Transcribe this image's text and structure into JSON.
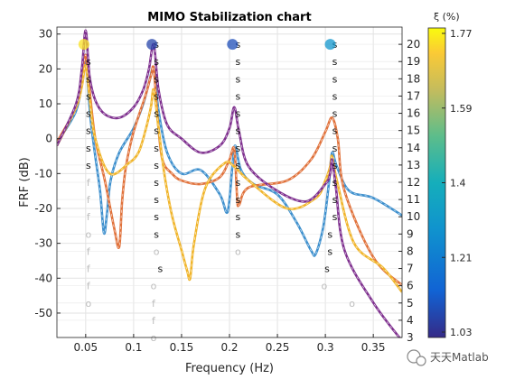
{
  "chart_data": {
    "type": "line",
    "title": "MIMO Stabilization chart",
    "xlabel": "Frequency (Hz)",
    "ylabel": "FRF (dB)",
    "xlim": [
      0.02,
      0.38
    ],
    "ylim": [
      -57,
      32
    ],
    "y2lim": [
      3,
      21
    ],
    "xticks": [
      0.05,
      0.1,
      0.15,
      0.2,
      0.25,
      0.3,
      0.35
    ],
    "yticks": [
      -50,
      -40,
      -30,
      -20,
      -10,
      0,
      10,
      20,
      30
    ],
    "y2ticks": [
      3,
      4,
      5,
      6,
      7,
      8,
      9,
      10,
      11,
      12,
      13,
      14,
      15,
      16,
      17,
      18,
      19,
      20
    ],
    "grid": true,
    "colorbar": {
      "label": "ξ (%)",
      "ticks": [
        "1.77",
        "1.59",
        "1.4",
        "1.21",
        "1.03"
      ],
      "range": [
        1.03,
        1.77
      ]
    },
    "stable_poles": [
      {
        "freq": 0.05,
        "damping": 1.74
      },
      {
        "freq": 0.121,
        "damping": 1.08
      },
      {
        "freq": 0.205,
        "damping": 1.1
      },
      {
        "freq": 0.307,
        "damping": 1.3
      }
    ],
    "series": [
      {
        "color": "#3d8fcd",
        "x": [
          0.02,
          0.03,
          0.04,
          0.045,
          0.048,
          0.05,
          0.052,
          0.055,
          0.06,
          0.065,
          0.069,
          0.072,
          0.076,
          0.085,
          0.1,
          0.11,
          0.116,
          0.121,
          0.126,
          0.135,
          0.15,
          0.17,
          0.19,
          0.198,
          0.203,
          0.206,
          0.212,
          0.225,
          0.25,
          0.27,
          0.285,
          0.29,
          0.298,
          0.304,
          0.307,
          0.312,
          0.325,
          0.35,
          0.38
        ],
        "y": [
          -1,
          3,
          8,
          14,
          20,
          24,
          17,
          6,
          -5,
          -15,
          -27,
          -22,
          -12,
          -4,
          3,
          10,
          16,
          20,
          8,
          -4,
          -10,
          -9,
          -16,
          -21,
          -8,
          -2,
          -9,
          -13,
          -16,
          -24,
          -32,
          -33,
          -25,
          -12,
          -4,
          -8,
          -15,
          -17,
          -22
        ]
      },
      {
        "color": "#e0713a",
        "x": [
          0.02,
          0.04,
          0.046,
          0.05,
          0.054,
          0.06,
          0.07,
          0.08,
          0.085,
          0.088,
          0.092,
          0.1,
          0.112,
          0.118,
          0.121,
          0.125,
          0.13,
          0.14,
          0.15,
          0.17,
          0.19,
          0.2,
          0.205,
          0.208,
          0.21,
          0.22,
          0.26,
          0.285,
          0.3,
          0.307,
          0.313,
          0.32,
          0.35,
          0.38
        ],
        "y": [
          -1,
          9,
          16,
          24,
          14,
          0,
          -12,
          -26,
          -31,
          -18,
          -8,
          2,
          12,
          18,
          20,
          6,
          -6,
          -10,
          -12,
          -13,
          -11,
          -6,
          -3,
          -17,
          -19,
          -14,
          -12,
          -6,
          2,
          6,
          0,
          -15,
          -34,
          -42
        ]
      },
      {
        "color": "#f0b429",
        "x": [
          0.02,
          0.04,
          0.046,
          0.05,
          0.054,
          0.06,
          0.075,
          0.095,
          0.105,
          0.112,
          0.118,
          0.121,
          0.126,
          0.132,
          0.14,
          0.15,
          0.156,
          0.159,
          0.163,
          0.175,
          0.195,
          0.205,
          0.22,
          0.26,
          0.29,
          0.3,
          0.305,
          0.307,
          0.312,
          0.33,
          0.36,
          0.38
        ],
        "y": [
          -2,
          9,
          15,
          21,
          12,
          0,
          -10,
          -7,
          -4,
          2,
          9,
          14,
          3,
          -10,
          -22,
          -32,
          -38,
          -40,
          -30,
          -14,
          -7,
          -8,
          -12,
          -20,
          -17,
          -12,
          -8,
          -5,
          -12,
          -30,
          -37,
          -44
        ]
      },
      {
        "color": "#7e2f8e",
        "x": [
          0.02,
          0.04,
          0.046,
          0.05,
          0.054,
          0.06,
          0.07,
          0.085,
          0.1,
          0.11,
          0.116,
          0.121,
          0.126,
          0.135,
          0.15,
          0.17,
          0.19,
          0.2,
          0.205,
          0.21,
          0.22,
          0.25,
          0.28,
          0.3,
          0.305,
          0.307,
          0.311,
          0.32,
          0.35,
          0.38
        ],
        "y": [
          -2,
          10,
          20,
          31,
          18,
          11,
          7,
          6,
          9,
          14,
          20,
          27,
          14,
          4,
          0,
          -4,
          -2,
          3,
          9,
          2,
          -8,
          -15,
          -18,
          -13,
          -10,
          -6,
          -14,
          -32,
          -47,
          -58
        ]
      }
    ],
    "stability_markers": [
      {
        "freq": 0.05,
        "orders": [
          19,
          18,
          17,
          16,
          15,
          14,
          13
        ],
        "mark": "s"
      },
      {
        "freq": 0.05,
        "orders": [
          12,
          11,
          10
        ],
        "mark": "f"
      },
      {
        "freq": 0.05,
        "orders": [
          9
        ],
        "mark": "o"
      },
      {
        "freq": 0.05,
        "orders": [
          8,
          7,
          6
        ],
        "mark": "f"
      },
      {
        "freq": 0.05,
        "orders": [
          5
        ],
        "mark": "o"
      },
      {
        "freq": 0.121,
        "orders": [
          20,
          19,
          18,
          17,
          16,
          15,
          14,
          13,
          12,
          11,
          10,
          9
        ],
        "mark": "s"
      },
      {
        "freq": 0.121,
        "orders": [
          8
        ],
        "mark": "o"
      },
      {
        "freq": 0.125,
        "orders": [
          7
        ],
        "mark": "s"
      },
      {
        "freq": 0.118,
        "orders": [
          6
        ],
        "mark": "o"
      },
      {
        "freq": 0.118,
        "orders": [
          5
        ],
        "mark": "f"
      },
      {
        "freq": 0.118,
        "orders": [
          4
        ],
        "mark": "f"
      },
      {
        "freq": 0.118,
        "orders": [
          3
        ],
        "mark": "o"
      },
      {
        "freq": 0.206,
        "orders": [
          20,
          19,
          18,
          17,
          16,
          15,
          14,
          13,
          12,
          11,
          10,
          9
        ],
        "mark": "s"
      },
      {
        "freq": 0.206,
        "orders": [
          8
        ],
        "mark": "o"
      },
      {
        "freq": 0.307,
        "orders": [
          20,
          19,
          18,
          17,
          16,
          15,
          14,
          13,
          12,
          11,
          10
        ],
        "mark": "s"
      },
      {
        "freq": 0.302,
        "orders": [
          9,
          8
        ],
        "mark": "s"
      },
      {
        "freq": 0.299,
        "orders": [
          7
        ],
        "mark": "s"
      },
      {
        "freq": 0.296,
        "orders": [
          6
        ],
        "mark": "o"
      },
      {
        "freq": 0.325,
        "orders": [
          5
        ],
        "mark": "o"
      }
    ]
  },
  "watermark": "天天Matlab"
}
